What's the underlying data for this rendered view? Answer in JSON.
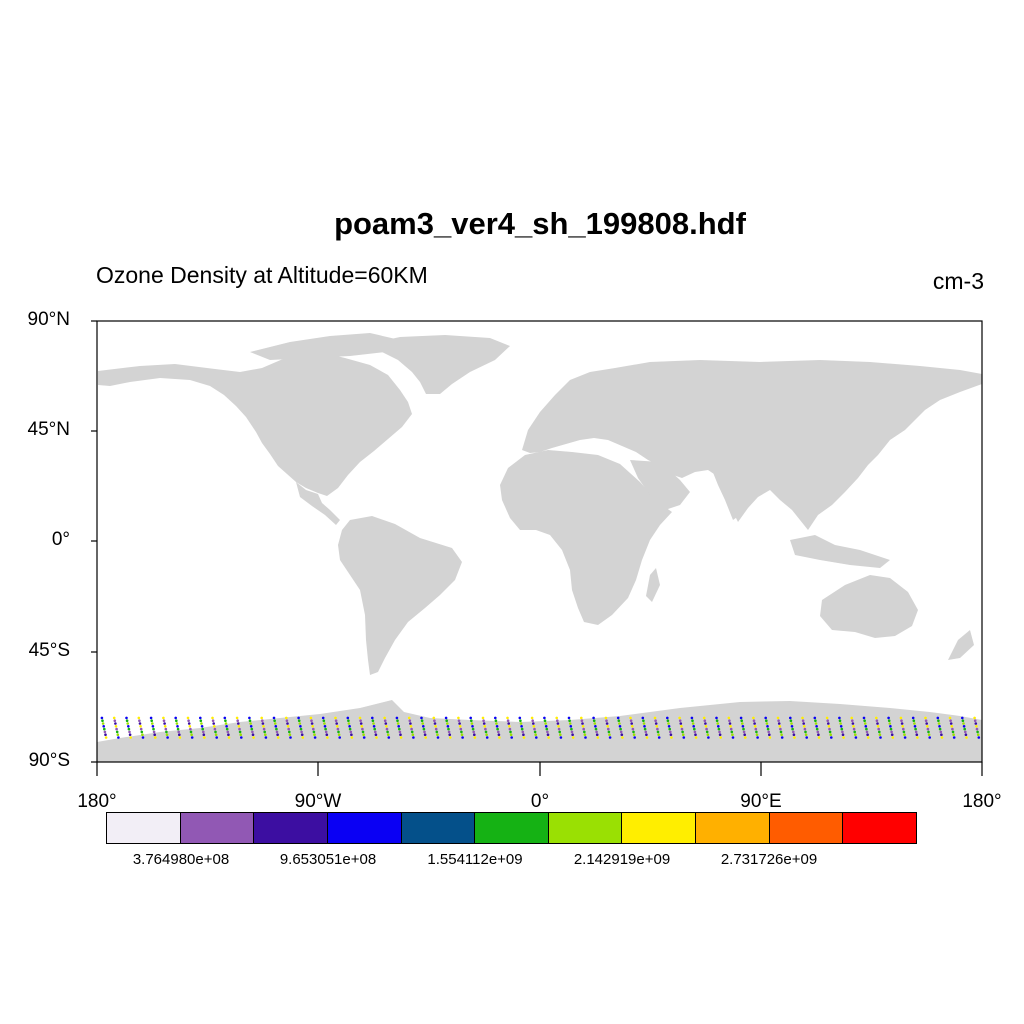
{
  "title": "poam3_ver4_sh_199808.hdf",
  "subtitle_left": "Ozone Density at Altitude=60KM",
  "subtitle_right": "cm-3",
  "lat_labels": [
    "90°N",
    "45°N",
    "0°",
    "45°S",
    "90°S"
  ],
  "lon_labels": [
    "180°",
    "90°W",
    "0°",
    "90°E",
    "180°"
  ],
  "colorbar": {
    "colors": [
      "#f2eef6",
      "#9158b4",
      "#3c0ea1",
      "#0a00f4",
      "#04508a",
      "#15b214",
      "#9ae003",
      "#ffee00",
      "#ffb000",
      "#ff5c00",
      "#ff0000"
    ],
    "labels": [
      "3.764980e+08",
      "9.653051e+08",
      "1.554112e+09",
      "2.142919e+09",
      "2.731726e+09"
    ]
  },
  "map_data": {
    "projection": "cylindrical-equidistant",
    "lon_range": [
      -180,
      180
    ],
    "lat_range": [
      -90,
      90
    ],
    "land_color": "#d3d3d3",
    "observation_band_lat": [
      -72,
      -80
    ],
    "observation_lon_step": 5,
    "point_colors": [
      "#0a00f4",
      "#3c0ea1",
      "#15b214",
      "#ffee00",
      "#9ae003",
      "#9158b4"
    ]
  }
}
